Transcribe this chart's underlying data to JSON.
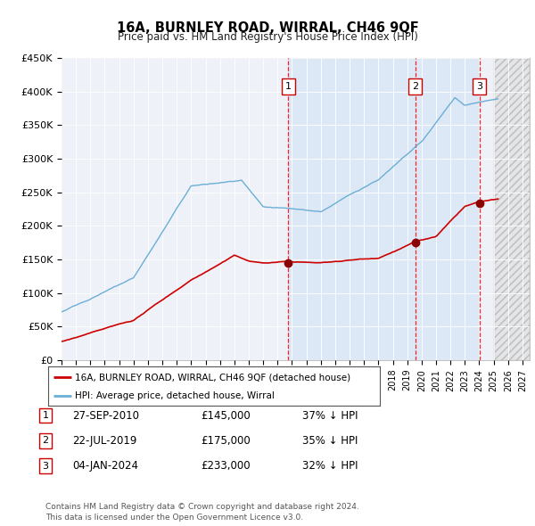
{
  "title": "16A, BURNLEY ROAD, WIRRAL, CH46 9QF",
  "subtitle": "Price paid vs. HM Land Registry's House Price Index (HPI)",
  "ylim": [
    0,
    450000
  ],
  "yticks": [
    0,
    50000,
    100000,
    150000,
    200000,
    250000,
    300000,
    350000,
    400000,
    450000
  ],
  "ytick_labels": [
    "£0",
    "£50K",
    "£100K",
    "£150K",
    "£200K",
    "£250K",
    "£300K",
    "£350K",
    "£400K",
    "£450K"
  ],
  "xlim_start": 1995.0,
  "xlim_end": 2027.5,
  "hpi_color": "#6baed6",
  "price_color": "#cc0000",
  "sale1_date": 2010.74,
  "sale1_price": 145000,
  "sale2_date": 2019.55,
  "sale2_price": 175000,
  "sale3_date": 2024.01,
  "sale3_price": 233000,
  "legend_property": "16A, BURNLEY ROAD, WIRRAL, CH46 9QF (detached house)",
  "legend_hpi": "HPI: Average price, detached house, Wirral",
  "table_rows": [
    {
      "num": "1",
      "date": "27-SEP-2010",
      "price": "£145,000",
      "pct": "37% ↓ HPI"
    },
    {
      "num": "2",
      "date": "22-JUL-2019",
      "price": "£175,000",
      "pct": "35% ↓ HPI"
    },
    {
      "num": "3",
      "date": "04-JAN-2024",
      "price": "£233,000",
      "pct": "32% ↓ HPI"
    }
  ],
  "footnote": "Contains HM Land Registry data © Crown copyright and database right 2024.\nThis data is licensed under the Open Government Licence v3.0.",
  "hatch_region_start": 2025.0,
  "shade_region_start": 2010.74,
  "shade_region_end": 2024.01,
  "background_plot": "#eef2f8",
  "shade_color": "#dce8f5"
}
